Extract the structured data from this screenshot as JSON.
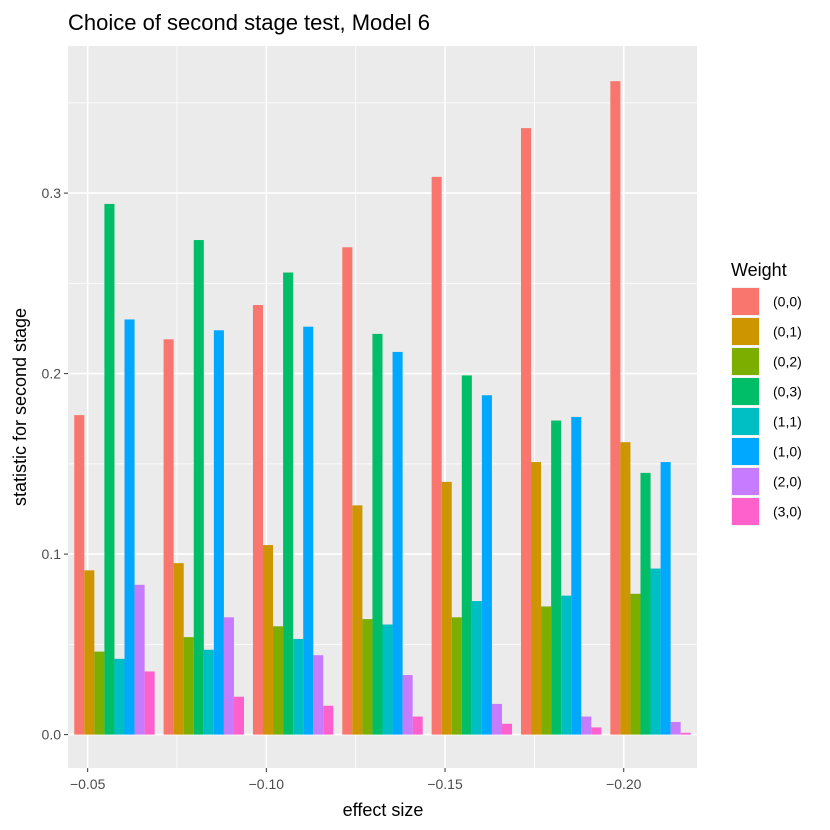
{
  "chart_data": {
    "type": "bar",
    "title": "Choice of second stage test, Model 6",
    "xlabel": "effect size",
    "ylabel": "statistic for second stage",
    "legend_title": "Weight",
    "legend_position": "right",
    "grid": true,
    "x_reversed": true,
    "x": [
      -0.0575,
      -0.0825,
      -0.1075,
      -0.1325,
      -0.1575,
      -0.1825,
      -0.2075
    ],
    "x_ticks": [
      -0.05,
      -0.1,
      -0.15,
      -0.2
    ],
    "x_tick_labels": [
      "−0.05",
      "−0.10",
      "−0.15",
      "−0.20"
    ],
    "xlim": [
      -0.0445,
      -0.2205
    ],
    "y_ticks": [
      0.0,
      0.1,
      0.2,
      0.3
    ],
    "y_tick_labels": [
      "0.0",
      "0.1",
      "0.2",
      "0.3"
    ],
    "ylim": [
      -0.0185,
      0.3815
    ],
    "series": [
      {
        "name": "(0,0)",
        "color": "#F8766D",
        "values": [
          0.177,
          0.219,
          0.238,
          0.27,
          0.309,
          0.336,
          0.362
        ]
      },
      {
        "name": "(0,1)",
        "color": "#CD9600",
        "values": [
          0.091,
          0.095,
          0.105,
          0.127,
          0.14,
          0.151,
          0.162
        ]
      },
      {
        "name": "(0,2)",
        "color": "#7CAE00",
        "values": [
          0.046,
          0.054,
          0.06,
          0.064,
          0.065,
          0.071,
          0.078
        ]
      },
      {
        "name": "(0,3)",
        "color": "#00BE67",
        "values": [
          0.294,
          0.274,
          0.256,
          0.222,
          0.199,
          0.174,
          0.145
        ]
      },
      {
        "name": "(1,1)",
        "color": "#00BFC4",
        "values": [
          0.042,
          0.047,
          0.053,
          0.061,
          0.074,
          0.077,
          0.092
        ]
      },
      {
        "name": "(1,0)",
        "color": "#00A9FF",
        "values": [
          0.23,
          0.224,
          0.226,
          0.212,
          0.188,
          0.176,
          0.151
        ]
      },
      {
        "name": "(2,0)",
        "color": "#C77CFF",
        "values": [
          0.083,
          0.065,
          0.044,
          0.033,
          0.017,
          0.01,
          0.007
        ]
      },
      {
        "name": "(3,0)",
        "color": "#FF61CC",
        "values": [
          0.035,
          0.021,
          0.016,
          0.01,
          0.006,
          0.004,
          0.001
        ]
      }
    ]
  }
}
